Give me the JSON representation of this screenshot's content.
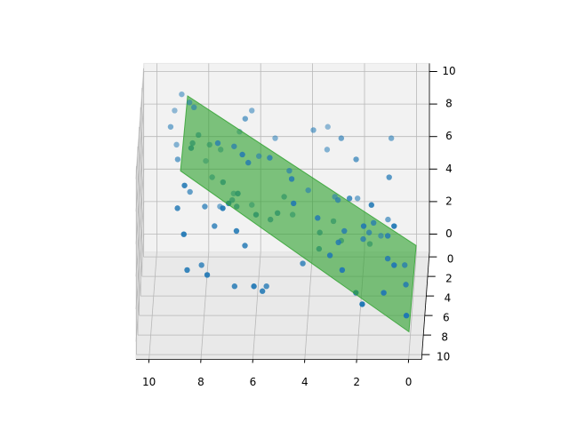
{
  "chart_data": {
    "type": "scatter3d",
    "x": [
      9.0,
      8.7,
      9.3,
      9.4,
      8.5,
      6.3,
      6.5,
      6.8,
      8.3,
      9.2,
      8.5,
      8.5,
      7.9,
      7.5,
      7.5,
      6.9,
      6.5,
      9.1,
      8.1,
      6.0,
      5.5,
      5.4,
      3.9,
      3.4,
      2.8,
      3.4,
      2.2,
      0.9,
      0.9,
      6.3,
      4.8,
      4.6,
      7.8,
      7.3,
      8.7,
      8.6,
      7.0,
      6.7,
      7.0,
      7.0,
      7.5,
      8.0,
      9.0,
      7.2,
      6.8,
      6.3,
      6.0,
      5.0,
      4.5,
      4.1,
      5.2,
      3.6,
      3.1,
      2.9,
      2.4,
      3.1,
      2.2,
      1.5,
      1.5,
      1.0,
      0.9,
      8.7,
      7.6,
      6.7,
      5.5,
      4.7,
      2.6,
      2.8,
      1.8,
      1.7,
      1.3,
      0.6,
      2.8,
      1.9,
      6.4,
      3.6,
      3.1,
      4.2,
      2.6,
      0.9,
      0.6,
      8.6,
      8.1,
      7.8,
      6.8,
      6.0,
      5.7,
      5.6,
      2.1,
      1.0,
      0.2,
      1.8,
      0.1,
      0.3,
      1.7,
      3.6
    ],
    "y": [
      1,
      1,
      0,
      2,
      2,
      1,
      3,
      0,
      3,
      1,
      4,
      6,
      2,
      5,
      1,
      4,
      7,
      3,
      0,
      2,
      5,
      1,
      2,
      0,
      3,
      1,
      4,
      2,
      5,
      6,
      3,
      7,
      2,
      5,
      8,
      4,
      1,
      6,
      3,
      8,
      2,
      5,
      7,
      9,
      4,
      1,
      6,
      3,
      8,
      2,
      5,
      7,
      1,
      4,
      6,
      3,
      2,
      8,
      5,
      3,
      7,
      9,
      6,
      8,
      4,
      2,
      6,
      3,
      8,
      4,
      2,
      9,
      7,
      5,
      7,
      5,
      8,
      6,
      9,
      7,
      9,
      8,
      6,
      9,
      7,
      9,
      8,
      6,
      8,
      9,
      7,
      10,
      10,
      5,
      3,
      4
    ],
    "z": [
      9.5,
      9.0,
      7.9,
      8.1,
      9.3,
      8.5,
      9.2,
      6.6,
      8.2,
      6.4,
      8.3,
      9.2,
      7.0,
      8.9,
      6.1,
      8.1,
      9.4,
      6.7,
      4.8,
      6.3,
      8.0,
      6.8,
      7.9,
      6.9,
      8.0,
      6.1,
      7.3,
      7.4,
      6.8,
      8.3,
      6.0,
      7.9,
      5.0,
      6.5,
      8.1,
      5.3,
      3.4,
      6.4,
      4.2,
      7.0,
      3.2,
      5.0,
      6.1,
      7.3,
      4.4,
      2.7,
      5.1,
      4.4,
      7.0,
      4.2,
      4.6,
      5.5,
      3.2,
      4.8,
      6.1,
      2.9,
      3.7,
      6.9,
      4.0,
      3.0,
      4.4,
      5.7,
      4.4,
      5.3,
      3.6,
      2.7,
      4.1,
      1.7,
      5.6,
      2.8,
      1.4,
      6.2,
      4.0,
      3.0,
      3.8,
      2.4,
      3.8,
      2.1,
      3.5,
      3.0,
      3.8,
      2.9,
      2.0,
      3.2,
      1.3,
      2.5,
      1.6,
      0.7,
      1.5,
      2.1,
      1.4,
      2.0,
      1.3,
      1.4,
      1.5,
      2.8
    ],
    "color": "#1f77b4",
    "surface": {
      "x": [
        0,
        8.8
      ],
      "y": [
        0,
        10
      ],
      "z": [
        [
          -0.4,
          0.3
        ],
        [
          8.8,
          10.2
        ]
      ],
      "color": "#2ca02c"
    },
    "xlim": [
      -0.5,
      10.5
    ],
    "ylim": [
      -0.5,
      10.5
    ],
    "zlim": [
      -1.1,
      10.5
    ],
    "xticks": [
      0,
      2,
      4,
      6,
      8,
      10
    ],
    "yticks": [
      0,
      2,
      4,
      6,
      8,
      10
    ],
    "zticks": [
      0,
      2,
      4,
      6,
      8,
      10
    ],
    "grid": true
  }
}
